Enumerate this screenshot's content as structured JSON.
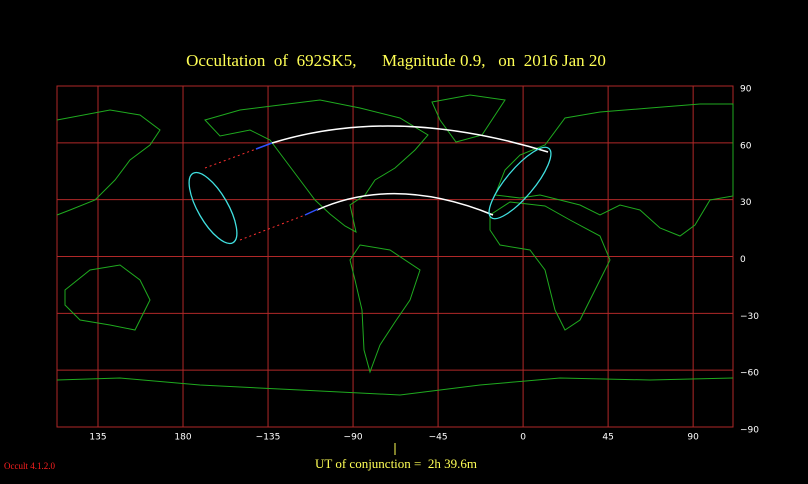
{
  "title": "Occultation  of  692SK5,      Magnitude 0.9,   on  2016 Jan 20",
  "map": {
    "xlim": [
      -246.7,
      111.1
    ],
    "xticks": [
      {
        "value": -225,
        "label": "135"
      },
      {
        "value": -180,
        "label": "180"
      },
      {
        "value": -135,
        "label": "−135"
      },
      {
        "value": -90,
        "label": "−90"
      },
      {
        "value": -45,
        "label": "−45"
      },
      0,
      45,
      90
    ],
    "ylim": [
      -90,
      90
    ],
    "yticks": [
      {
        "value": -90,
        "label": "−90"
      },
      {
        "value": -60,
        "label": "−60"
      },
      {
        "value": -30,
        "label": "−30"
      },
      0,
      30,
      60,
      90
    ]
  },
  "conjunction": "UT of conjunction =  2h 39.6m",
  "software": "Occult 4.1.2.0"
}
